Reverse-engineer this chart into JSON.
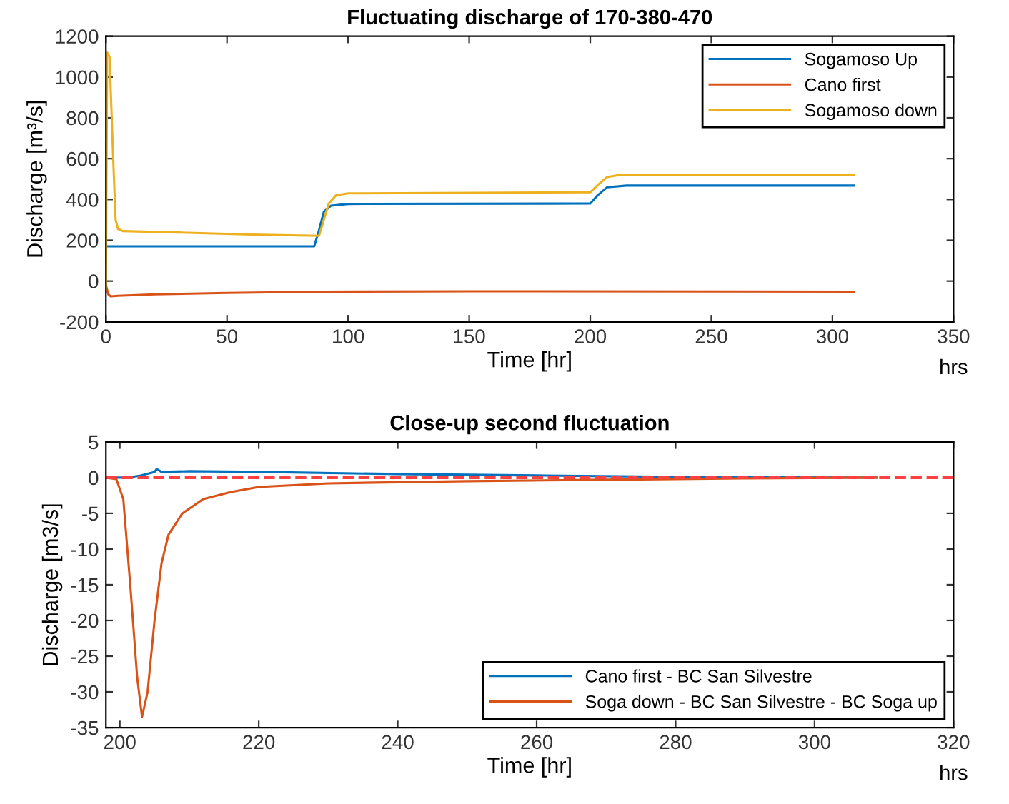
{
  "chart_data": [
    {
      "type": "line",
      "title": "Fluctuating discharge of 170-380-470",
      "xlabel": "Time [hr]",
      "ylabel": "Discharge [m³/s]",
      "annotations": [
        "hrs"
      ],
      "xlim": [
        0,
        350
      ],
      "xticks": [
        0,
        50,
        100,
        150,
        200,
        250,
        300,
        350
      ],
      "ylim": [
        -200,
        1200
      ],
      "yticks": [
        -200,
        0,
        200,
        400,
        600,
        800,
        1000,
        1200
      ],
      "grid": false,
      "legend": "top right",
      "line_style": "solid",
      "series": [
        {
          "name": "Sogamoso Up",
          "color": "#0072bd",
          "x": [
            0,
            86,
            88,
            90,
            93,
            100,
            200,
            203,
            207,
            215,
            309
          ],
          "values": [
            170,
            170,
            250,
            340,
            370,
            378,
            380,
            420,
            460,
            468,
            468
          ]
        },
        {
          "name": "Cano first",
          "color": "#d95319",
          "x": [
            0,
            1,
            2,
            5,
            20,
            50,
            90,
            150,
            309
          ],
          "values": [
            -20,
            -65,
            -75,
            -72,
            -65,
            -58,
            -52,
            -50,
            -52
          ]
        },
        {
          "name": "Sogamoso down",
          "color": "#edb120",
          "x": [
            0,
            0.5,
            1.5,
            3,
            4,
            5,
            7,
            30,
            60,
            88,
            90,
            92,
            95,
            100,
            200,
            203,
            207,
            212,
            309
          ],
          "values": [
            -40,
            1120,
            1100,
            600,
            300,
            255,
            245,
            238,
            228,
            222,
            300,
            380,
            420,
            430,
            435,
            470,
            510,
            520,
            522
          ]
        }
      ]
    },
    {
      "type": "line",
      "title": "Close-up second fluctuation",
      "xlabel": "Time [hr]",
      "ylabel": "Discharge [m3/s]",
      "annotations": [
        "hrs"
      ],
      "xlim": [
        198,
        320
      ],
      "xticks": [
        200,
        220,
        240,
        260,
        280,
        300,
        320
      ],
      "ylim": [
        -35,
        5
      ],
      "yticks": [
        -35,
        -30,
        -25,
        -20,
        -15,
        -10,
        -5,
        0,
        5
      ],
      "grid": false,
      "legend": "bottom right",
      "line_style": "solid",
      "ref_lines": [
        {
          "axis": "y",
          "value": 0,
          "color": "#ff4040",
          "line_style": "dashed"
        }
      ],
      "series": [
        {
          "name": "Cano first - BC San Silvestre",
          "color": "#0072bd",
          "x": [
            198,
            201,
            203,
            205,
            205.3,
            206,
            210,
            220,
            240,
            260,
            280,
            309
          ],
          "values": [
            0,
            0,
            0.3,
            0.8,
            1.2,
            0.8,
            0.9,
            0.8,
            0.5,
            0.3,
            0.1,
            0
          ]
        },
        {
          "name": "Soga down - BC San Silvestre - BC Soga up",
          "color": "#d95319",
          "x": [
            198,
            199.5,
            200.5,
            201.5,
            202.5,
            203.2,
            204,
            205,
            206,
            207,
            209,
            212,
            216,
            220,
            230,
            250,
            270,
            290,
            309
          ],
          "values": [
            0,
            -0.2,
            -3,
            -15,
            -28,
            -33.5,
            -30,
            -20,
            -12,
            -8,
            -5,
            -3,
            -2,
            -1.3,
            -0.8,
            -0.5,
            -0.3,
            -0.1,
            0
          ]
        }
      ]
    }
  ]
}
